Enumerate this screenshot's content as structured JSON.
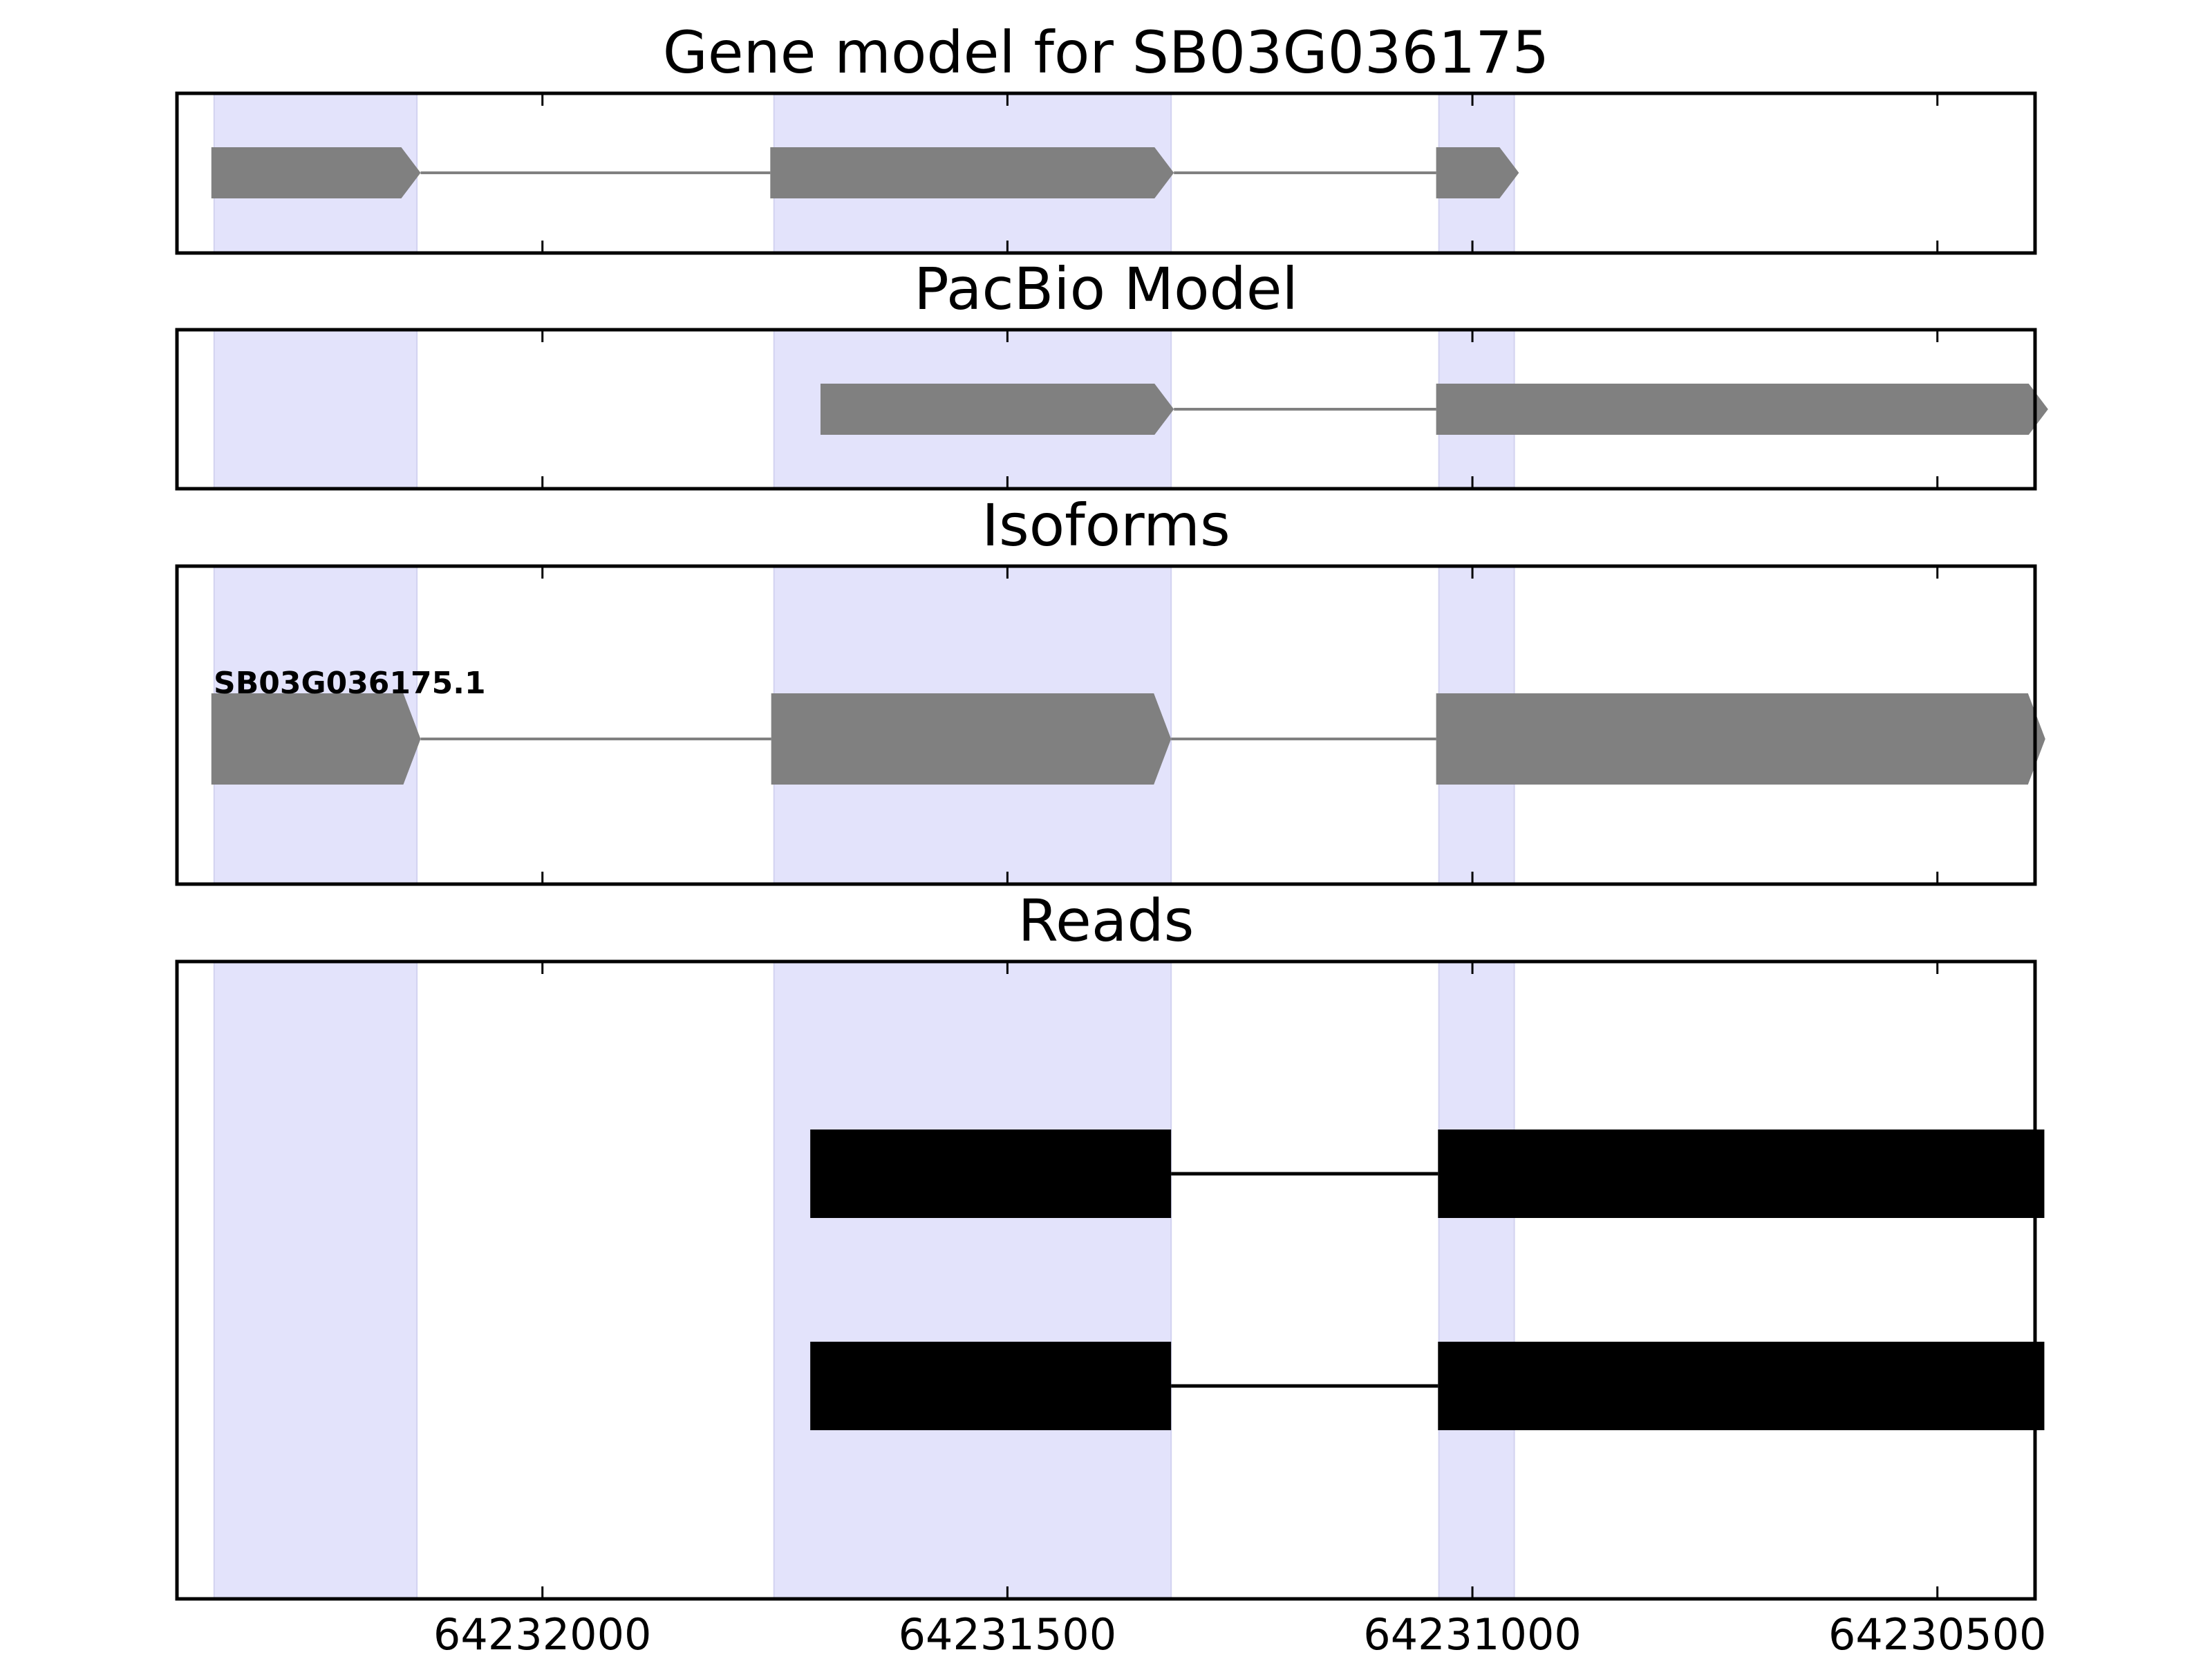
{
  "chart_data": {
    "type": "gene-track",
    "xlim": [
      64232393,
      64230395
    ],
    "x_reversed": true,
    "x_ticks": [
      64232000,
      64231500,
      64231000,
      64230500
    ],
    "x_tick_labels": [
      "64232000",
      "64231500",
      "64231000",
      "64230500"
    ],
    "colors": {
      "exon_region_shading": "#e3e3fb",
      "model_feature": "#808080",
      "read_feature": "#000000",
      "axes_frame": "#000000"
    },
    "highlight_regions": [
      {
        "start": 64232353,
        "end": 64232135
      },
      {
        "start": 64231751,
        "end": 64231324
      },
      {
        "start": 64231036,
        "end": 64230955
      }
    ],
    "panels": [
      {
        "key": "gene_model",
        "title": "Gene model for SB03G036175",
        "strand": "-",
        "features": [
          {
            "kind": "exon",
            "start": 64232356,
            "end": 64232131
          },
          {
            "kind": "exon",
            "start": 64231755,
            "end": 64231321
          },
          {
            "kind": "exon",
            "start": 64231039,
            "end": 64230950
          }
        ]
      },
      {
        "key": "pacbio_model",
        "title": "PacBio Model",
        "strand": "-",
        "features": [
          {
            "kind": "exon",
            "start": 64231701,
            "end": 64231321
          },
          {
            "kind": "exon",
            "start": 64231039,
            "end": 64230381
          }
        ]
      },
      {
        "key": "isoforms",
        "title": "Isoforms",
        "strand": "-",
        "isoform_label": "SB03G036175.1",
        "features": [
          {
            "kind": "exon",
            "start": 64232356,
            "end": 64232131
          },
          {
            "kind": "exon",
            "start": 64231754,
            "end": 64231324
          },
          {
            "kind": "exon",
            "start": 64231039,
            "end": 64230384
          }
        ]
      },
      {
        "key": "reads",
        "title": "Reads",
        "reads": [
          [
            {
              "start": 64231712,
              "end": 64231324
            },
            {
              "start": 64231037,
              "end": 64230385
            }
          ],
          [
            {
              "start": 64231712,
              "end": 64231324
            },
            {
              "start": 64231037,
              "end": 64230385
            }
          ]
        ]
      }
    ]
  }
}
